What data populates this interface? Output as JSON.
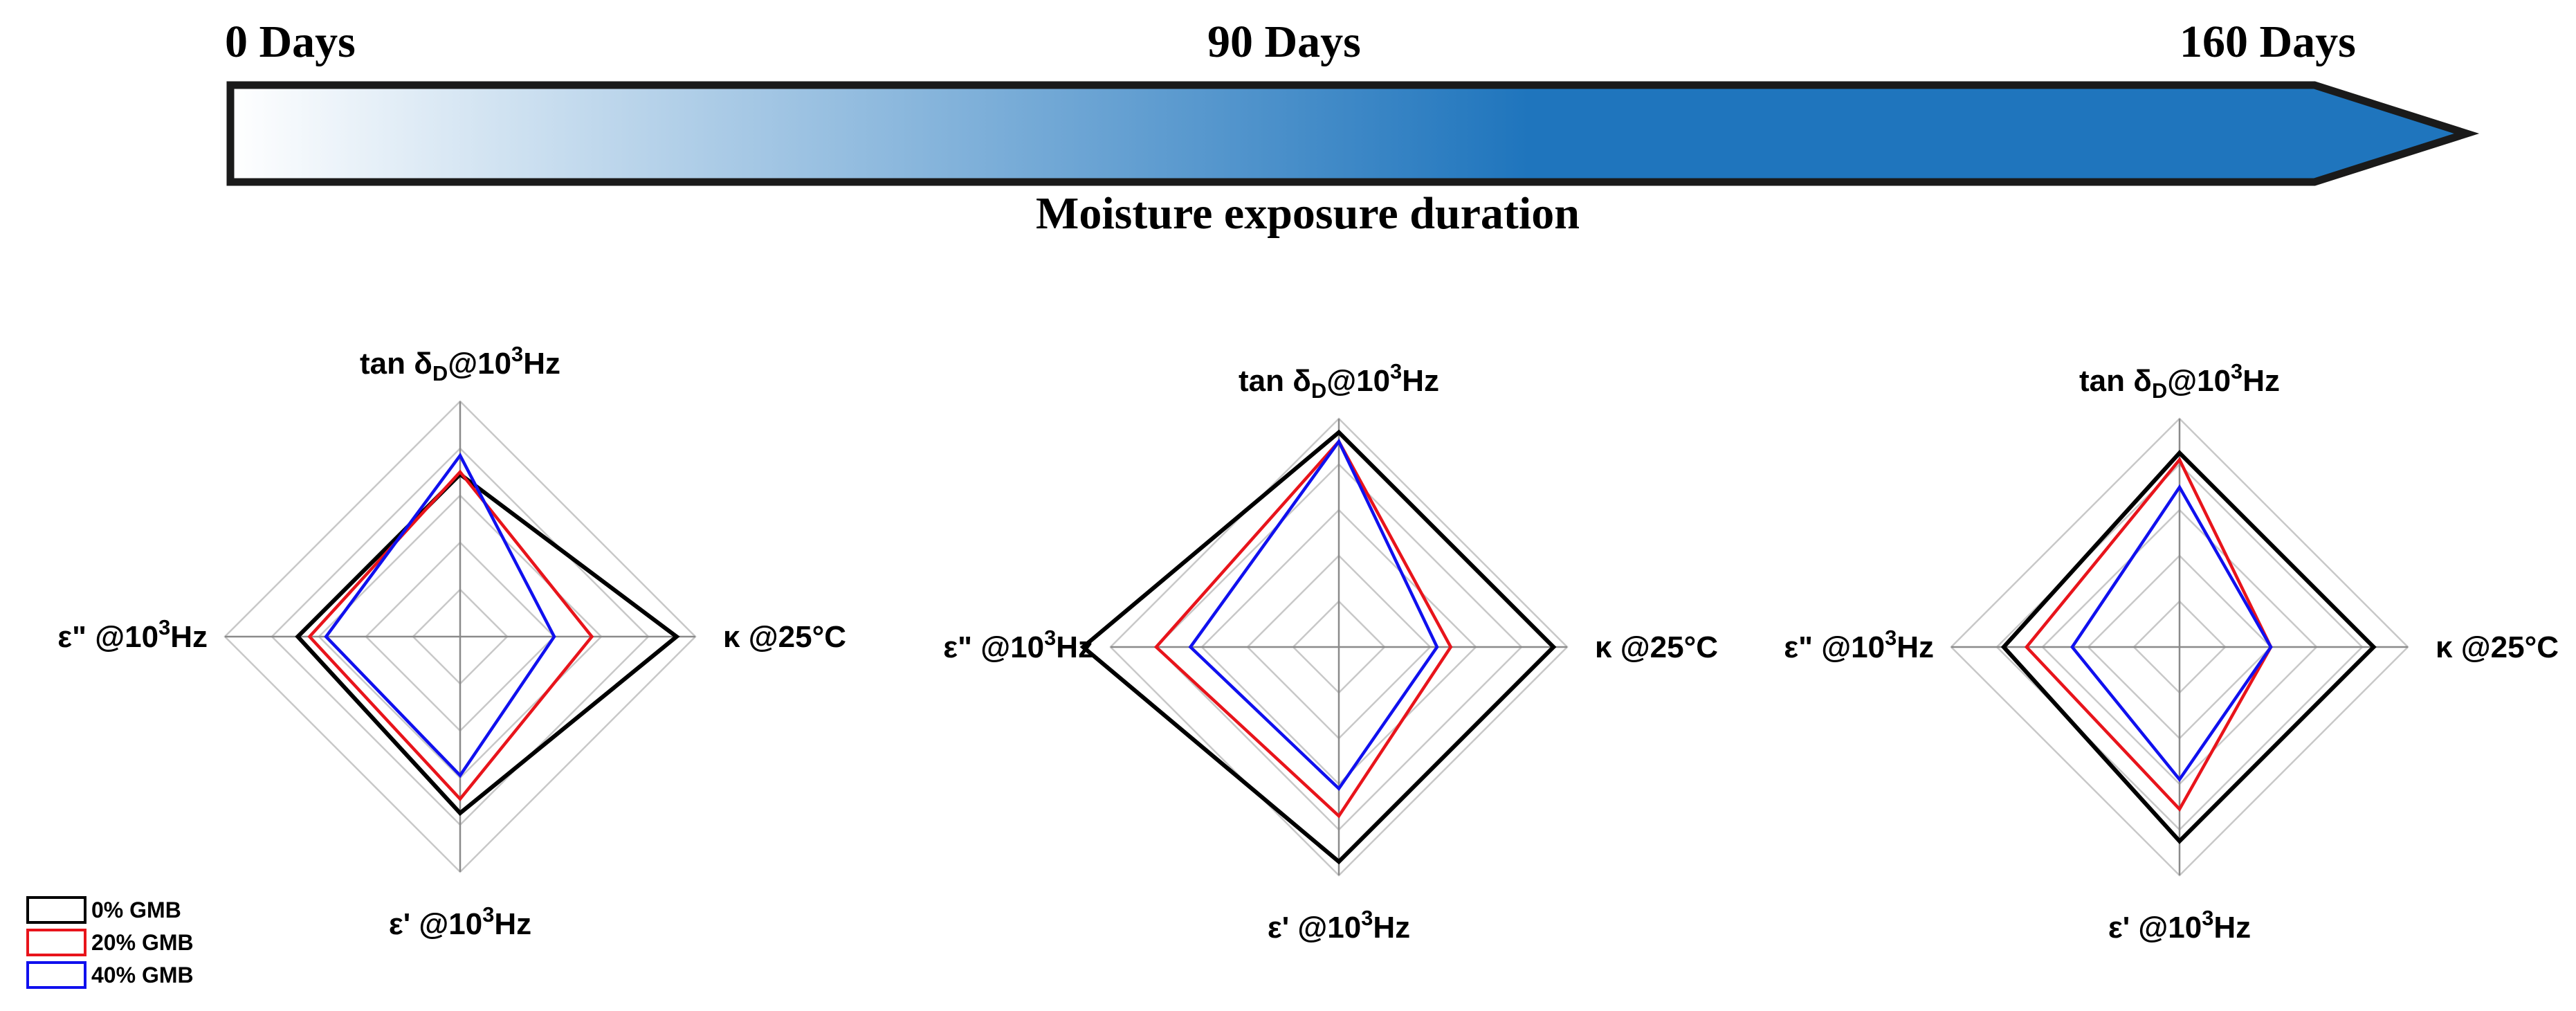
{
  "timeline": {
    "start_label": "0 Days",
    "mid_label": "90 Days",
    "end_label": "160 Days",
    "caption": "Moisture exposure duration",
    "gradient_start": "#ffffff",
    "gradient_end": "#1f75bd"
  },
  "legend": {
    "entries": [
      {
        "label": "0% GMB",
        "color": "#000000"
      },
      {
        "label": "20% GMB",
        "color": "#e8141b"
      },
      {
        "label": "40% GMB",
        "color": "#1010ee"
      }
    ]
  },
  "axis_text": {
    "top": {
      "main": "tan δ",
      "sub": "D",
      "rest": "@10",
      "sup": "3",
      "unit": "Hz"
    },
    "right": "κ  @25°C",
    "bottom": {
      "main": "ε' @10",
      "sup": "3",
      "unit": "Hz"
    },
    "left": {
      "main": "ε\" @10",
      "sup": "3",
      "unit": "Hz"
    }
  },
  "chart_data": [
    {
      "type": "radar",
      "timepoint": "0 Days",
      "axes": [
        "tan δD @10^3 Hz",
        "κ @25°C",
        "ε' @10^3 Hz",
        "ε\" @10^3 Hz"
      ],
      "rmax": 5,
      "rings": 5,
      "series": [
        {
          "name": "0% GMB",
          "color": "#000000",
          "values": [
            3.45,
            4.6,
            3.75,
            3.45
          ]
        },
        {
          "name": "20% GMB",
          "color": "#e8141b",
          "values": [
            3.5,
            2.8,
            3.45,
            3.2
          ]
        },
        {
          "name": "40% GMB",
          "color": "#1010ee",
          "values": [
            3.85,
            2.0,
            2.95,
            2.85
          ]
        }
      ]
    },
    {
      "type": "radar",
      "timepoint": "90 Days",
      "axes": [
        "tan δD @10^3 Hz",
        "κ @25°C",
        "ε' @10^3 Hz",
        "ε\" @10^3 Hz"
      ],
      "rmax": 5,
      "rings": 5,
      "series": [
        {
          "name": "0% GMB",
          "color": "#000000",
          "values": [
            4.7,
            4.7,
            4.7,
            5.6
          ]
        },
        {
          "name": "20% GMB",
          "color": "#e8141b",
          "values": [
            4.5,
            2.45,
            3.7,
            4.0
          ]
        },
        {
          "name": "40% GMB",
          "color": "#1010ee",
          "values": [
            4.5,
            2.15,
            3.1,
            3.25
          ]
        }
      ]
    },
    {
      "type": "radar",
      "timepoint": "160 Days",
      "axes": [
        "tan δD @10^3 Hz",
        "κ @25°C",
        "ε' @10^3 Hz",
        "ε\" @10^3 Hz"
      ],
      "rmax": 5,
      "rings": 5,
      "series": [
        {
          "name": "0% GMB",
          "color": "#000000",
          "values": [
            4.25,
            4.25,
            4.25,
            3.85
          ]
        },
        {
          "name": "20% GMB",
          "color": "#e8141b",
          "values": [
            4.1,
            2.0,
            3.55,
            3.35
          ]
        },
        {
          "name": "40% GMB",
          "color": "#1010ee",
          "values": [
            3.5,
            2.0,
            2.9,
            2.35
          ]
        }
      ]
    }
  ]
}
